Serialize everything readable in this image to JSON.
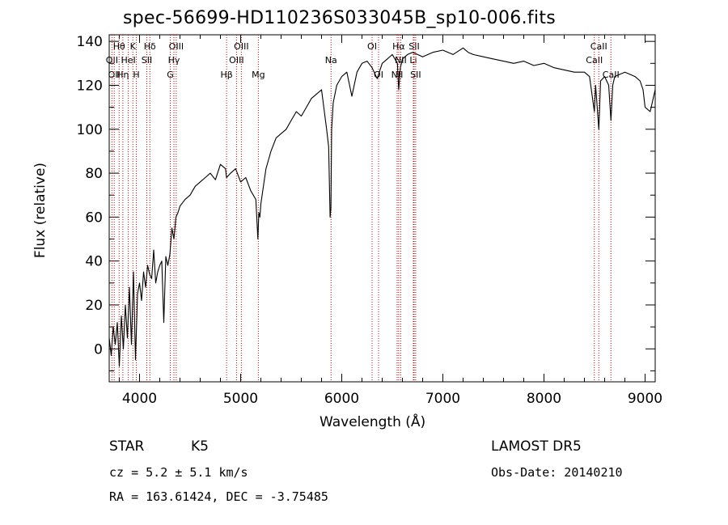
{
  "chart_data": {
    "type": "line",
    "title": "spec-56699-HD110236S033045B_sp10-006.fits",
    "xlabel": "Wavelength (Å)",
    "ylabel": "Flux (relative)",
    "xlim": [
      3700,
      9100
    ],
    "ylim": [
      -15,
      143
    ],
    "xticks": [
      4000,
      5000,
      6000,
      7000,
      8000,
      9000
    ],
    "yticks": [
      0,
      20,
      40,
      60,
      80,
      100,
      120,
      140
    ],
    "series": [
      {
        "x": [
          3700,
          3720,
          3740,
          3760,
          3780,
          3800,
          3820,
          3840,
          3860,
          3880,
          3900,
          3920,
          3940,
          3960,
          3980,
          4000,
          4020,
          4040,
          4060,
          4080,
          4100,
          4120,
          4140,
          4160,
          4180,
          4200,
          4220,
          4240,
          4260,
          4280,
          4300,
          4320,
          4340,
          4360,
          4380,
          4400,
          4450,
          4500,
          4550,
          4600,
          4650,
          4700,
          4750,
          4800,
          4850,
          4860,
          4900,
          4950,
          5000,
          5050,
          5100,
          5150,
          5170,
          5180,
          5190,
          5200,
          5250,
          5300,
          5350,
          5400,
          5450,
          5500,
          5550,
          5600,
          5650,
          5700,
          5750,
          5800,
          5850,
          5870,
          5885,
          5893,
          5900,
          5915,
          5950,
          6000,
          6050,
          6100,
          6150,
          6200,
          6250,
          6300,
          6350,
          6400,
          6450,
          6500,
          6550,
          6563,
          6580,
          6600,
          6650,
          6700,
          6750,
          6800,
          6900,
          7000,
          7100,
          7200,
          7250,
          7300,
          7400,
          7500,
          7600,
          7700,
          7800,
          7900,
          8000,
          8100,
          8200,
          8300,
          8400,
          8450,
          8498,
          8510,
          8542,
          8560,
          8600,
          8640,
          8662,
          8680,
          8700,
          8750,
          8800,
          8850,
          8900,
          8950,
          8980,
          9000,
          9050,
          9100
        ],
        "y": [
          5,
          -3,
          10,
          2,
          12,
          -8,
          15,
          0,
          20,
          5,
          28,
          2,
          35,
          -5,
          25,
          30,
          22,
          35,
          28,
          38,
          34,
          32,
          45,
          30,
          35,
          38,
          40,
          12,
          42,
          38,
          43,
          55,
          50,
          60,
          62,
          65,
          68,
          70,
          74,
          76,
          78,
          80,
          77,
          84,
          82,
          78,
          80,
          82,
          76,
          78,
          72,
          68,
          50,
          62,
          60,
          66,
          82,
          90,
          96,
          98,
          100,
          104,
          108,
          106,
          110,
          114,
          116,
          118,
          100,
          92,
          60,
          64,
          100,
          112,
          120,
          124,
          126,
          115,
          126,
          130,
          131,
          128,
          123,
          130,
          132,
          134,
          130,
          118,
          128,
          132,
          134,
          135,
          134,
          133,
          135,
          136,
          134,
          137,
          135,
          134,
          133,
          132,
          131,
          130,
          131,
          129,
          130,
          128,
          127,
          126,
          126,
          124,
          108,
          120,
          100,
          122,
          124,
          120,
          104,
          120,
          124,
          125,
          126,
          125,
          124,
          122,
          118,
          110,
          108,
          118
        ]
      }
    ],
    "lines": [
      {
        "x": 3727,
        "label": "OII",
        "row": 2
      },
      {
        "x": 3750,
        "label": "OII",
        "row": 3
      },
      {
        "x": 3798,
        "label": "Hθ",
        "row": 1
      },
      {
        "x": 3835,
        "label": "Hη",
        "row": 3
      },
      {
        "x": 3889,
        "label": "HeI",
        "row": 2
      },
      {
        "x": 3934,
        "label": "K",
        "row": 1
      },
      {
        "x": 3968,
        "label": "H",
        "row": 3
      },
      {
        "x": 4072,
        "label": "SII",
        "row": 2
      },
      {
        "x": 4102,
        "label": "Hδ",
        "row": 1
      },
      {
        "x": 4304,
        "label": "G",
        "row": 3
      },
      {
        "x": 4340,
        "label": "Hγ",
        "row": 2
      },
      {
        "x": 4363,
        "label": "OIII",
        "row": 1
      },
      {
        "x": 4861,
        "label": "Hβ",
        "row": 3
      },
      {
        "x": 4959,
        "label": "OIII",
        "row": 2
      },
      {
        "x": 5007,
        "label": "OIII",
        "row": 1
      },
      {
        "x": 5175,
        "label": "Mg",
        "row": 3
      },
      {
        "x": 5894,
        "label": "Na",
        "row": 2
      },
      {
        "x": 6300,
        "label": "OI",
        "row": 1
      },
      {
        "x": 6364,
        "label": "OI",
        "row": 3
      },
      {
        "x": 6548,
        "label": "NII",
        "row": 3
      },
      {
        "x": 6563,
        "label": "Hα",
        "row": 1
      },
      {
        "x": 6583,
        "label": "NII",
        "row": 2
      },
      {
        "x": 6708,
        "label": "Li",
        "row": 2
      },
      {
        "x": 6716,
        "label": "SII",
        "row": 1
      },
      {
        "x": 6731,
        "label": "SII",
        "row": 3
      },
      {
        "x": 8498,
        "label": "CaII",
        "row": 2
      },
      {
        "x": 8542,
        "label": "CaII",
        "row": 1
      },
      {
        "x": 8662,
        "label": "CaII",
        "row": 3
      }
    ],
    "colors": {
      "line": "#000000",
      "marker": "#cc0000"
    }
  },
  "info": {
    "class": "STAR",
    "subclass": "K5",
    "survey": "LAMOST  DR5",
    "cz": "cz = 5.2 ± 5.1 km/s",
    "obs_date": "Obs-Date: 20140210",
    "radec": "RA = 163.61424, DEC =  -3.75485"
  }
}
